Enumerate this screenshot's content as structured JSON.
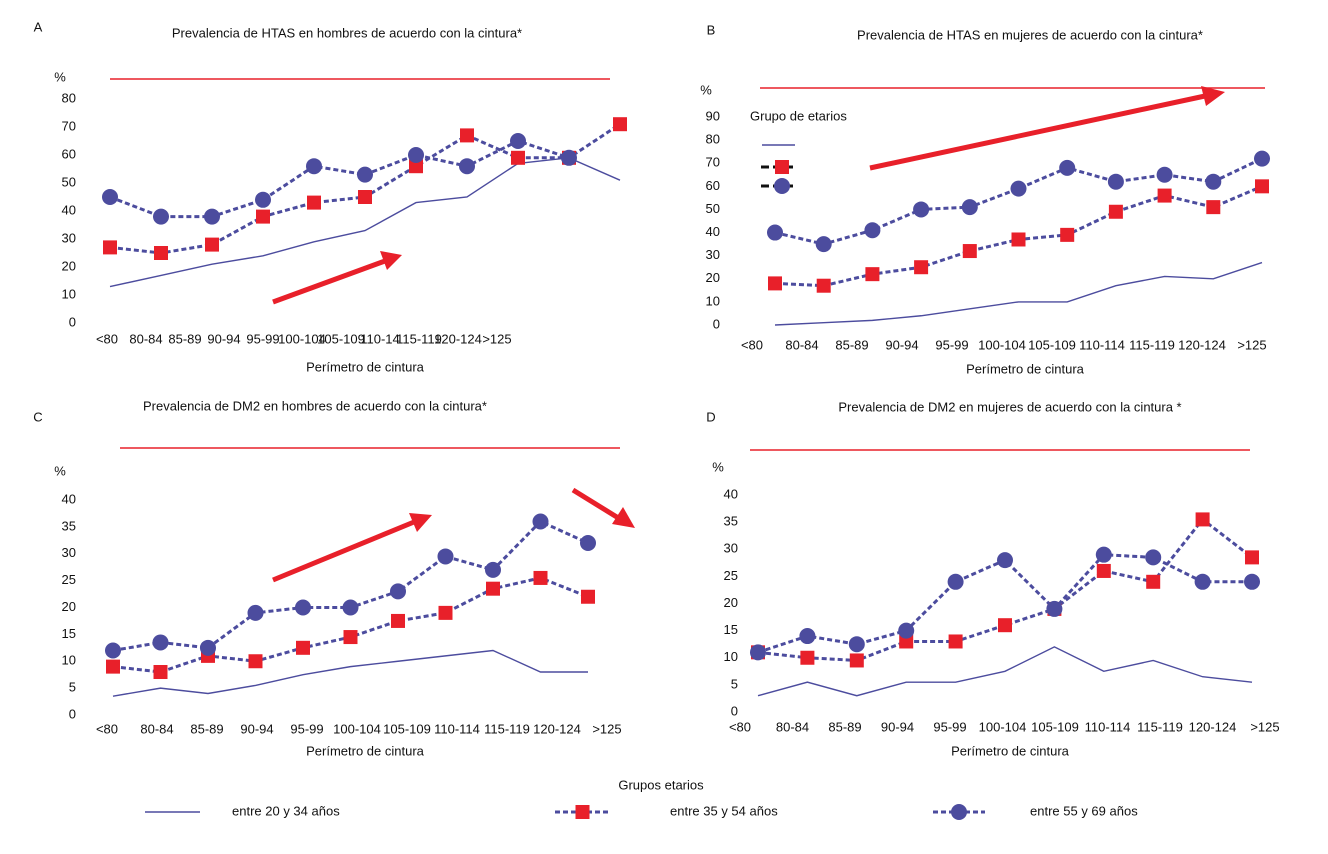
{
  "legend": {
    "title": "Grupos etarios",
    "items": [
      {
        "name": "entre 20 y 34 años",
        "color": "#4c4c9e",
        "line": "solid"
      },
      {
        "name": "entre 35 y 54 años",
        "color": "#4c4c9e",
        "line": "dashed",
        "marker": "square",
        "marker_color": "#e8202a"
      },
      {
        "name": "entre 55 y 69 años",
        "color": "#4c4c9e",
        "line": "dashed",
        "marker": "circle",
        "marker_color": "#4c4c9e"
      }
    ]
  },
  "chart_data": [
    {
      "type": "line",
      "panel": "A",
      "title": "Prevalencia de HTAS en hombres de acuerdo con la cintura*",
      "y_label": "%",
      "x_label": "Perímetro de cintura",
      "categories": [
        "<80",
        "80-84",
        "85-89",
        "90-94",
        "95-99",
        "100-104",
        "105-109",
        "110-14",
        "115-119",
        "120-124",
        ">125"
      ],
      "ylim": [
        0,
        80
      ],
      "yticks": [
        0,
        10,
        20,
        30,
        40,
        50,
        60,
        70,
        80
      ],
      "series": [
        {
          "color": "#4c4c9e",
          "line": "solid",
          "values": [
            13,
            17,
            21,
            24,
            29,
            33,
            43,
            45,
            57,
            59,
            51
          ]
        },
        {
          "color": "#4c4c9e",
          "line": "dashed",
          "marker": "square",
          "marker_color": "#e8202a",
          "values": [
            27,
            25,
            28,
            38,
            43,
            45,
            56,
            67,
            59,
            59,
            71
          ]
        },
        {
          "color": "#4c4c9e",
          "line": "dashed",
          "marker": "circle",
          "marker_color": "#4c4c9e",
          "values": [
            45,
            38,
            38,
            44,
            56,
            53,
            60,
            56,
            65,
            59,
            null
          ]
        }
      ]
    },
    {
      "type": "line",
      "panel": "B",
      "title": "Prevalencia de HTAS en mujeres de acuerdo con la cintura*",
      "y_label": "%",
      "x_label": "Perímetro de cintura",
      "legend_title": "Grupo de etarios",
      "categories": [
        "<80",
        "80-84",
        "85-89",
        "90-94",
        "95-99",
        "100-104",
        "105-109",
        "110-114",
        "115-119",
        "120-124",
        ">125"
      ],
      "ylim": [
        0,
        90
      ],
      "yticks": [
        0,
        10,
        20,
        30,
        40,
        50,
        60,
        70,
        80,
        90
      ],
      "series": [
        {
          "color": "#4c4c9e",
          "line": "solid",
          "values": [
            0,
            1,
            2,
            4,
            7,
            10,
            10,
            17,
            21,
            20,
            27
          ]
        },
        {
          "color": "#4c4c9e",
          "line": "dashed",
          "marker": "square",
          "marker_color": "#e8202a",
          "values": [
            18,
            17,
            22,
            25,
            32,
            37,
            39,
            49,
            56,
            51,
            60
          ]
        },
        {
          "color": "#4c4c9e",
          "line": "dashed",
          "marker": "circle",
          "marker_color": "#4c4c9e",
          "values": [
            40,
            35,
            41,
            50,
            51,
            59,
            68,
            62,
            65,
            62,
            72
          ]
        }
      ]
    },
    {
      "type": "line",
      "panel": "C",
      "title": "Prevalencia de DM2 en hombres de acuerdo con la cintura*",
      "y_label": "%",
      "x_label": "Perímetro de cintura",
      "categories": [
        "<80",
        "80-84",
        "85-89",
        "90-94",
        "95-99",
        "100-104",
        "105-109",
        "110-114",
        "115-119",
        "120-124",
        ">125"
      ],
      "ylim": [
        0,
        40
      ],
      "yticks": [
        0,
        5,
        10,
        15,
        20,
        25,
        30,
        35,
        40
      ],
      "series": [
        {
          "color": "#4c4c9e",
          "line": "solid",
          "values": [
            3.5,
            5,
            4,
            5.5,
            7.5,
            9,
            10,
            11,
            12,
            8,
            8
          ]
        },
        {
          "color": "#4c4c9e",
          "line": "dashed",
          "marker": "square",
          "marker_color": "#e8202a",
          "values": [
            9,
            8,
            11,
            10,
            12.5,
            14.5,
            17.5,
            19,
            23.5,
            25.5,
            22
          ]
        },
        {
          "color": "#4c4c9e",
          "line": "dashed",
          "marker": "circle",
          "marker_color": "#4c4c9e",
          "values": [
            12,
            13.5,
            12.5,
            19,
            20,
            20,
            23,
            29.5,
            27,
            36,
            32
          ]
        }
      ]
    },
    {
      "type": "line",
      "panel": "D",
      "title": "Prevalencia de DM2 en mujeres de acuerdo con la cintura *",
      "y_label": "%",
      "x_label": "Perímetro de cintura",
      "categories": [
        "<80",
        "80-84",
        "85-89",
        "90-94",
        "95-99",
        "100-104",
        "105-109",
        "110-114",
        "115-119",
        "120-124",
        ">125"
      ],
      "ylim": [
        0,
        40
      ],
      "yticks": [
        0,
        5,
        10,
        15,
        20,
        25,
        30,
        35,
        40
      ],
      "series": [
        {
          "color": "#4c4c9e",
          "line": "solid",
          "values": [
            3,
            5.5,
            3,
            5.5,
            5.5,
            7.5,
            12,
            7.5,
            9.5,
            6.5,
            5.5
          ]
        },
        {
          "color": "#4c4c9e",
          "line": "dashed",
          "marker": "square",
          "marker_color": "#e8202a",
          "values": [
            11,
            10,
            9.5,
            13,
            13,
            16,
            19,
            26,
            24,
            35.5,
            28.5
          ]
        },
        {
          "color": "#4c4c9e",
          "line": "dashed",
          "marker": "circle",
          "marker_color": "#4c4c9e",
          "values": [
            11,
            14,
            12.5,
            15,
            24,
            28,
            19,
            29,
            28.5,
            24,
            24
          ]
        }
      ]
    }
  ]
}
